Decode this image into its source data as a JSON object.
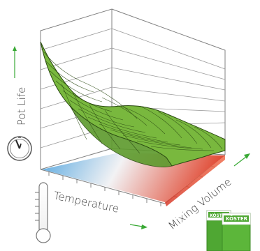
{
  "labels": {
    "pot_life": "Pot Life",
    "temperature": "Temperature",
    "mixing_volume": "Mixing Volume"
  },
  "package": {
    "brand": "KÖSTER"
  },
  "colors": {
    "surface_green": "#6fb138",
    "surface_edge": "#2f4f16",
    "cold": "#6fb6e6",
    "hot": "#e0492f",
    "arrow_green": "#39a935",
    "box_frame": "#7f7f7f",
    "package_green": "#4fa733"
  }
}
